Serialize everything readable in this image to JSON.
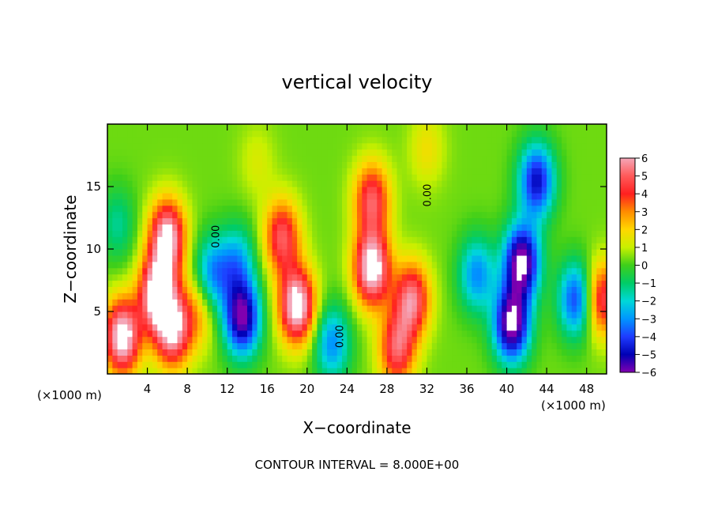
{
  "chart_data": {
    "type": "heatmap",
    "title": "vertical velocity",
    "xlabel": "X−coordinate",
    "ylabel": "Z−coordinate",
    "x_unit_left": "(×1000 m)",
    "x_unit_right": "(×1000 m)",
    "footer": "CONTOUR INTERVAL = 8.000E+00",
    "xlim": [
      0,
      50
    ],
    "ylim": [
      0,
      20
    ],
    "x_ticks": [
      4,
      8,
      12,
      16,
      20,
      24,
      28,
      32,
      36,
      40,
      44,
      48
    ],
    "x_tick_labels": [
      "4",
      "8",
      "12",
      "16",
      "20",
      "24",
      "28",
      "32",
      "36",
      "40",
      "44",
      "48"
    ],
    "y_ticks": [
      5,
      10,
      15
    ],
    "y_tick_labels": [
      "5",
      "10",
      "15"
    ],
    "colorbar": {
      "range": [
        -6,
        6
      ],
      "ticks": [
        6,
        5,
        4,
        3,
        2,
        1,
        0,
        -1,
        -2,
        -3,
        -4,
        -5,
        -6
      ],
      "tick_labels": [
        "6",
        "5",
        "4",
        "3",
        "2",
        "1",
        "0",
        "−1",
        "−2",
        "−3",
        "−4",
        "−5",
        "−6"
      ],
      "stops": [
        {
          "v": 6,
          "color": "#f4a6b8"
        },
        {
          "v": 5,
          "color": "#ff5a5a"
        },
        {
          "v": 4,
          "color": "#ff2020"
        },
        {
          "v": 3,
          "color": "#ff8c00"
        },
        {
          "v": 2,
          "color": "#ffd700"
        },
        {
          "v": 1,
          "color": "#c8f000"
        },
        {
          "v": 0,
          "color": "#3ecf1a"
        },
        {
          "v": -1,
          "color": "#00cc66"
        },
        {
          "v": -2,
          "color": "#00d8d8"
        },
        {
          "v": -3,
          "color": "#0096ff"
        },
        {
          "v": -4,
          "color": "#1e3cff"
        },
        {
          "v": -5,
          "color": "#0000b4"
        },
        {
          "v": -6,
          "color": "#8000b0"
        }
      ]
    },
    "contour_labels": [
      {
        "text": "0.00",
        "x": 11.2,
        "y": 11.0,
        "angle": -90
      },
      {
        "text": "0.00",
        "x": 32.4,
        "y": 14.3,
        "angle": -90
      },
      {
        "text": "0.00",
        "x": 23.6,
        "y": 3.0,
        "angle": -90
      }
    ],
    "features": [
      {
        "x": 15,
        "z": 17,
        "w": 0.8
      },
      {
        "x": 32,
        "z": 18,
        "w": 1.2
      },
      {
        "x": 1,
        "z": 12,
        "w": -1.5
      },
      {
        "x": 6,
        "z": 11,
        "w": 5.5
      },
      {
        "x": 5,
        "z": 6.5,
        "w": 6
      },
      {
        "x": 1.5,
        "z": 3,
        "w": 6
      },
      {
        "x": 6.5,
        "z": 3.5,
        "w": 5
      },
      {
        "x": 13.5,
        "z": 4.5,
        "w": -5.5
      },
      {
        "x": 13,
        "z": 9,
        "w": -2.5
      },
      {
        "x": 10.5,
        "z": 8,
        "w": -3
      },
      {
        "x": 9,
        "z": 5,
        "w": 2
      },
      {
        "x": 17.5,
        "z": 11,
        "w": 4
      },
      {
        "x": 19,
        "z": 5.5,
        "w": 6
      },
      {
        "x": 22.5,
        "z": 2.5,
        "w": -3
      },
      {
        "x": 26.5,
        "z": 8.5,
        "w": 6
      },
      {
        "x": 26.5,
        "z": 14,
        "w": 4
      },
      {
        "x": 30.5,
        "z": 6,
        "w": 4.5
      },
      {
        "x": 29,
        "z": 2,
        "w": 4
      },
      {
        "x": 37,
        "z": 8,
        "w": -3
      },
      {
        "x": 43,
        "z": 15.5,
        "w": -4.5
      },
      {
        "x": 41.5,
        "z": 9,
        "w": -6
      },
      {
        "x": 40.5,
        "z": 4,
        "w": -6
      },
      {
        "x": 47,
        "z": 6,
        "w": -4
      },
      {
        "x": 49.5,
        "z": 6,
        "w": 4
      }
    ]
  }
}
